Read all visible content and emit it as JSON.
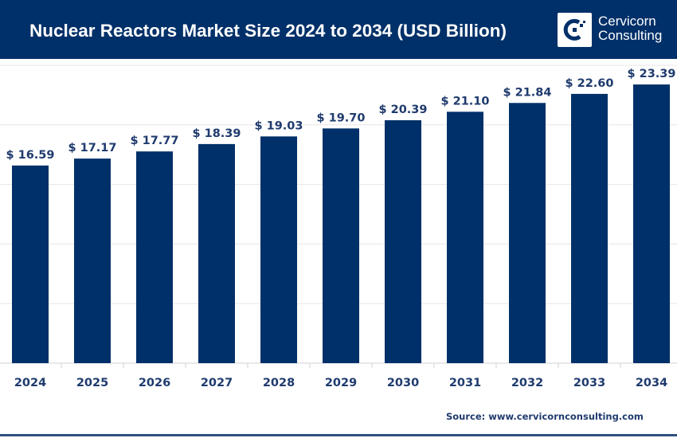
{
  "header": {
    "title": "Nuclear Reactors Market Size 2024 to 2034 (USD Billion)",
    "logo_line1": "Cervicorn",
    "logo_line2": "Consulting"
  },
  "source": "Source: www.cervicornconsulting.com",
  "colors": {
    "header": "#003069",
    "bar": "#003069",
    "label": "#1f3b6e"
  },
  "chart_data": {
    "type": "bar",
    "title": "Nuclear Reactors Market Size 2024 to 2034 (USD Billion)",
    "categories": [
      "2024",
      "2025",
      "2026",
      "2027",
      "2028",
      "2029",
      "2030",
      "2031",
      "2032",
      "2033",
      "2034"
    ],
    "values": [
      16.59,
      17.17,
      17.77,
      18.39,
      19.03,
      19.7,
      20.39,
      21.1,
      21.84,
      22.6,
      23.39
    ],
    "value_prefix": "$ ",
    "ylim": [
      0,
      25
    ],
    "grid": true,
    "xlabel": "",
    "ylabel": ""
  }
}
